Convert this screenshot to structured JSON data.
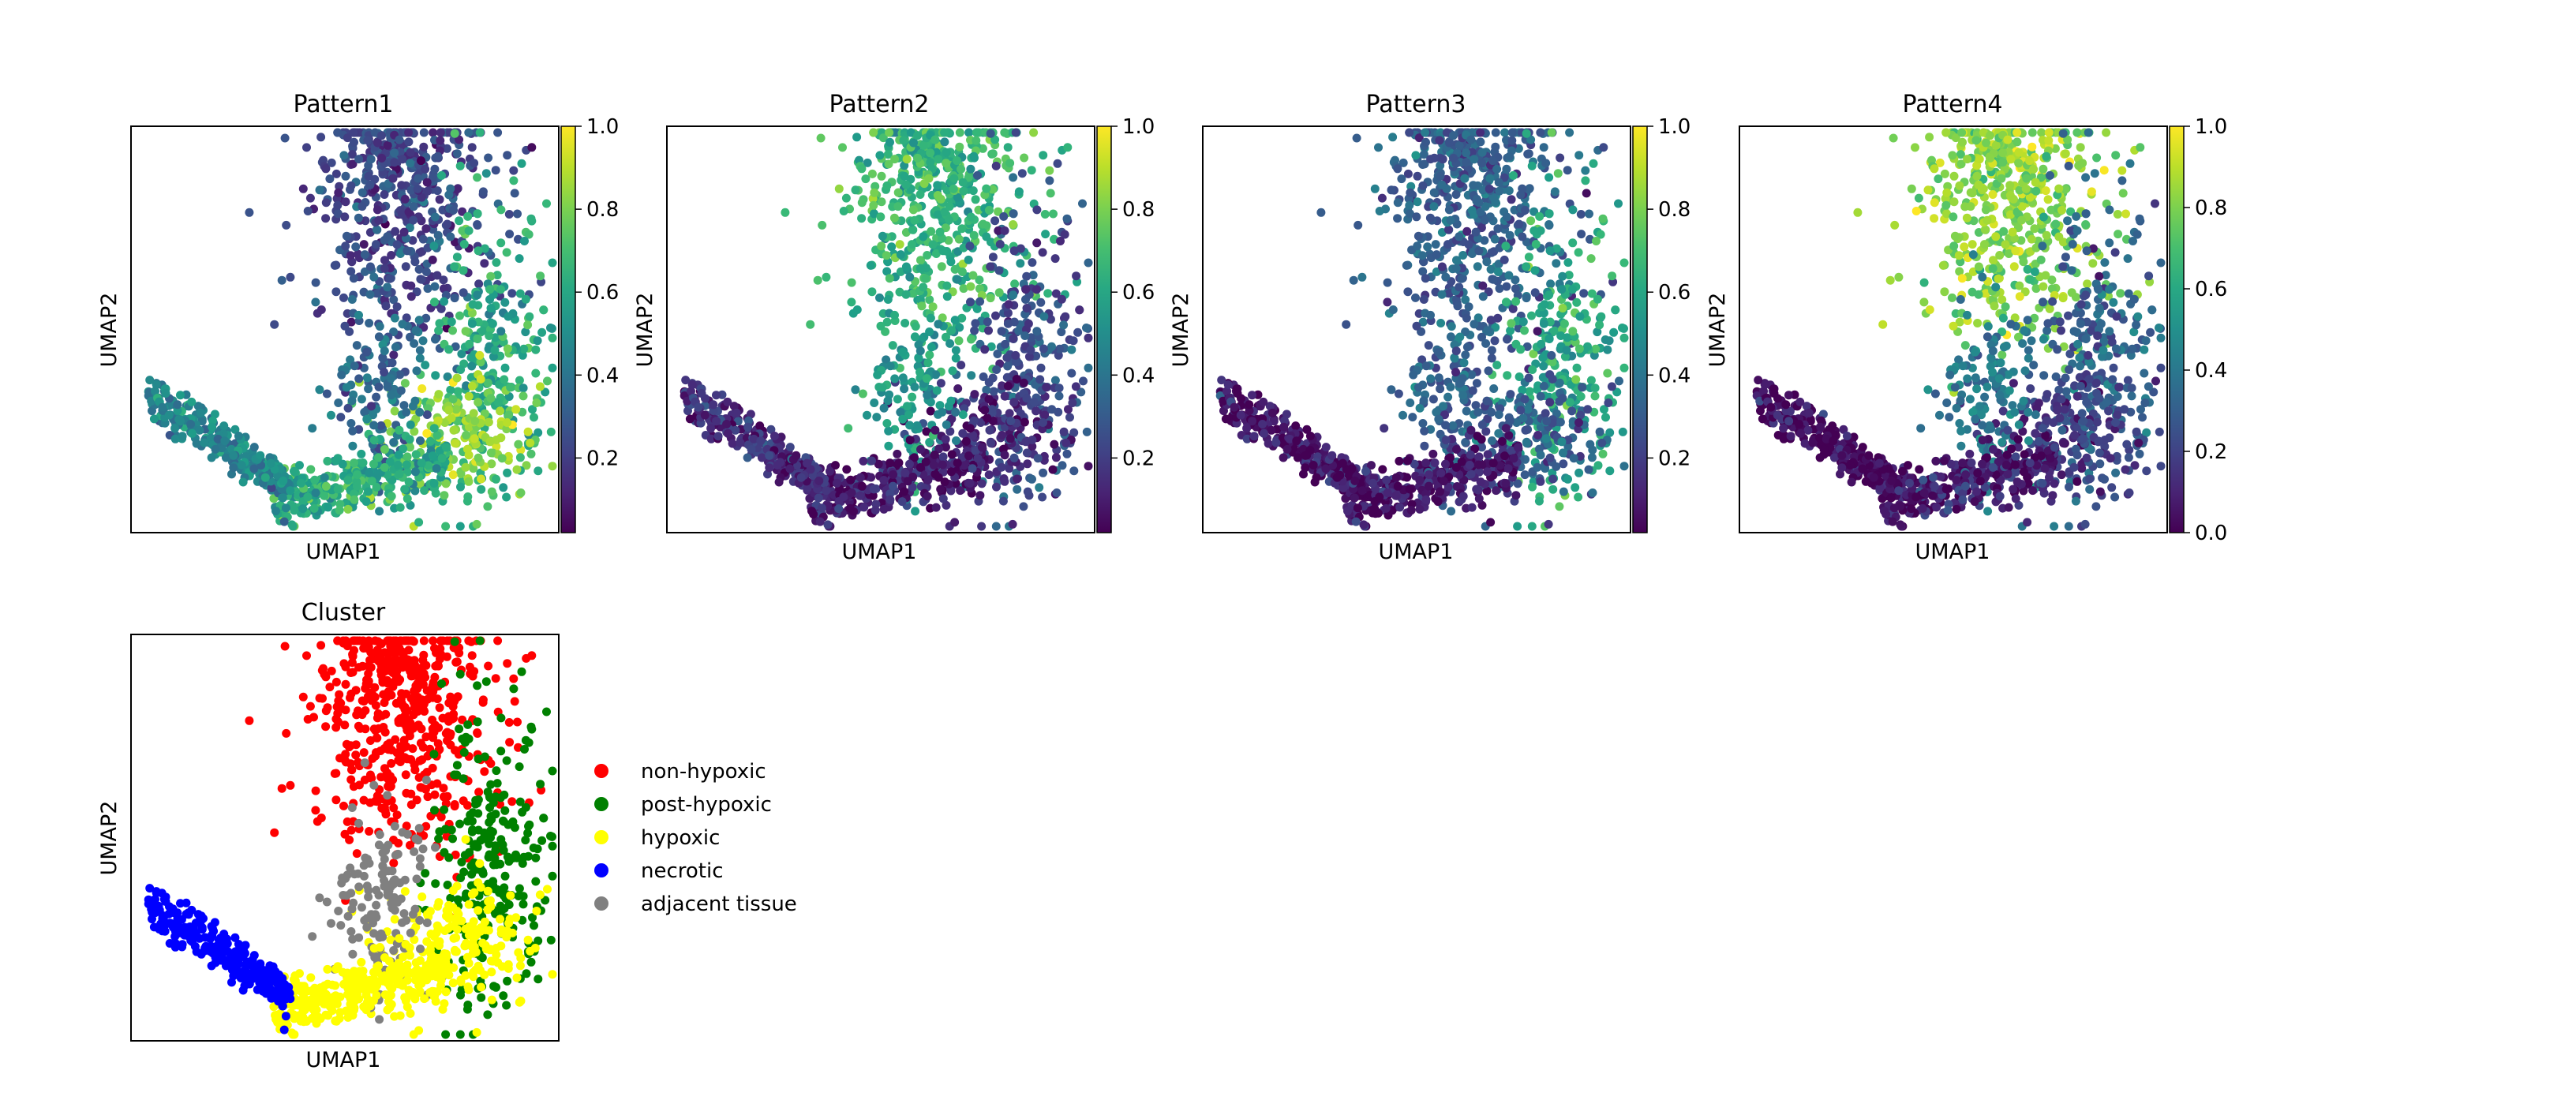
{
  "figure": {
    "panel_titles": [
      "Pattern1",
      "Pattern2",
      "Pattern3",
      "Pattern4",
      "Cluster"
    ],
    "xlabel": "UMAP1",
    "ylabel": "UMAP2"
  },
  "chart_data": [
    {
      "type": "scatter",
      "title": "Pattern1",
      "xlabel": "UMAP1",
      "ylabel": "UMAP2",
      "colormap": "viridis",
      "colorbar_ticks": [
        "0.2",
        "0.4",
        "0.6",
        "0.8",
        "1.0"
      ],
      "clim": [
        0.02,
        1.0
      ],
      "grid": false,
      "regions": [
        {
          "name": "top",
          "value": 0.22
        },
        {
          "name": "right",
          "value": 0.62
        },
        {
          "name": "lower-right",
          "value": 0.82
        },
        {
          "name": "bottom",
          "value": 0.62
        },
        {
          "name": "left-tail",
          "value": 0.45
        },
        {
          "name": "center",
          "value": 0.35
        }
      ]
    },
    {
      "type": "scatter",
      "title": "Pattern2",
      "xlabel": "UMAP1",
      "ylabel": "UMAP2",
      "colormap": "viridis",
      "colorbar_ticks": [
        "0.2",
        "0.4",
        "0.6",
        "0.8",
        "1.0"
      ],
      "clim": [
        0.02,
        1.0
      ],
      "grid": false,
      "regions": [
        {
          "name": "top",
          "value": 0.65
        },
        {
          "name": "right",
          "value": 0.25
        },
        {
          "name": "lower-right",
          "value": 0.12
        },
        {
          "name": "bottom",
          "value": 0.08
        },
        {
          "name": "left-tail",
          "value": 0.12
        },
        {
          "name": "center",
          "value": 0.55
        }
      ]
    },
    {
      "type": "scatter",
      "title": "Pattern3",
      "xlabel": "UMAP1",
      "ylabel": "UMAP2",
      "colormap": "viridis",
      "colorbar_ticks": [
        "0.2",
        "0.4",
        "0.6",
        "0.8",
        "1.0"
      ],
      "clim": [
        0.02,
        1.0
      ],
      "grid": false,
      "regions": [
        {
          "name": "top",
          "value": 0.3
        },
        {
          "name": "right",
          "value": 0.62
        },
        {
          "name": "lower-right",
          "value": 0.3
        },
        {
          "name": "bottom",
          "value": 0.06
        },
        {
          "name": "left-tail",
          "value": 0.04
        },
        {
          "name": "center",
          "value": 0.3
        }
      ]
    },
    {
      "type": "scatter",
      "title": "Pattern4",
      "xlabel": "UMAP1",
      "ylabel": "UMAP2",
      "colormap": "viridis",
      "colorbar_ticks": [
        "0.0",
        "0.2",
        "0.4",
        "0.6",
        "0.8",
        "1.0"
      ],
      "clim": [
        0.0,
        1.0
      ],
      "grid": false,
      "regions": [
        {
          "name": "top",
          "value": 0.82
        },
        {
          "name": "right",
          "value": 0.3
        },
        {
          "name": "lower-right",
          "value": 0.18
        },
        {
          "name": "bottom",
          "value": 0.08
        },
        {
          "name": "left-tail",
          "value": 0.02
        },
        {
          "name": "center",
          "value": 0.4
        }
      ]
    },
    {
      "type": "scatter",
      "title": "Cluster",
      "xlabel": "UMAP1",
      "ylabel": "UMAP2",
      "grid": false,
      "legend_position": "right",
      "categories": [
        {
          "name": "non-hypoxic",
          "color": "#ff0000"
        },
        {
          "name": "post-hypoxic",
          "color": "#008000"
        },
        {
          "name": "hypoxic",
          "color": "#ffff00"
        },
        {
          "name": "necrotic",
          "color": "#0000ff"
        },
        {
          "name": "adjacent tissue",
          "color": "#808080"
        }
      ]
    }
  ]
}
